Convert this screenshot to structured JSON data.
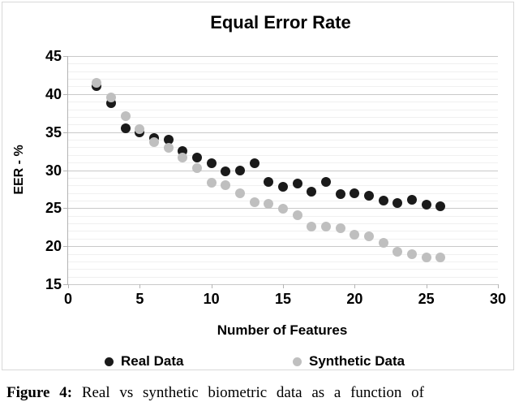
{
  "figure": {
    "caption_label": "Figure 4:",
    "caption_text": "Real vs synthetic biometric data as a function of"
  },
  "chart_data": {
    "type": "scatter",
    "title": "Equal Error Rate",
    "xlabel": "Number of Features",
    "ylabel": "EER - %",
    "xlim": [
      0,
      30
    ],
    "ylim": [
      15,
      45
    ],
    "xticks": [
      0,
      5,
      10,
      15,
      20,
      25,
      30
    ],
    "yticks": [
      15,
      20,
      25,
      30,
      35,
      40,
      45
    ],
    "grid": "horizontal",
    "minor_step": 1,
    "major_gridline_color": "#c9c9c9",
    "minor_gridline_color": "#f0f0f0",
    "axis_color": "#b4b4b4",
    "legend_position": "bottom",
    "marker_size_px": 12,
    "x": [
      2,
      3,
      4,
      5,
      6,
      7,
      8,
      9,
      10,
      11,
      12,
      13,
      14,
      15,
      16,
      17,
      18,
      19,
      20,
      21,
      22,
      23,
      24,
      25,
      26
    ],
    "series": [
      {
        "name": "Real Data",
        "color": "#1a1a1a",
        "values": [
          41.0,
          38.8,
          35.5,
          35.0,
          34.2,
          34.0,
          32.5,
          31.7,
          30.9,
          29.8,
          30.0,
          30.9,
          28.4,
          27.8,
          28.2,
          27.2,
          28.4,
          26.9,
          27.0,
          26.6,
          26.0,
          25.7,
          26.1,
          25.5,
          25.3
        ]
      },
      {
        "name": "Synthetic Data",
        "color": "#bfbfbf",
        "values": [
          41.5,
          39.6,
          37.1,
          35.4,
          33.7,
          32.9,
          31.7,
          30.3,
          28.3,
          28.0,
          27.0,
          25.8,
          25.6,
          24.9,
          24.1,
          22.6,
          22.6,
          22.4,
          21.5,
          21.3,
          20.4,
          19.3,
          19.0,
          18.5,
          18.5
        ]
      }
    ]
  }
}
